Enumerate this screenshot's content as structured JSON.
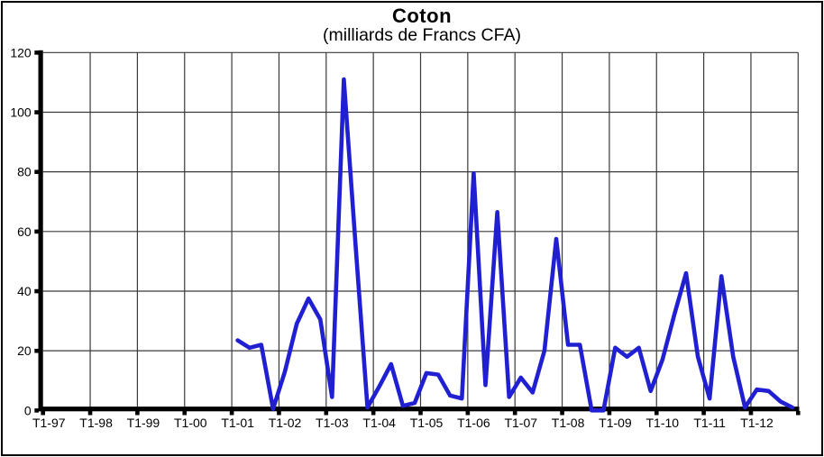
{
  "title": "Coton",
  "subtitle": "(milliards de Francs CFA)",
  "colors": {
    "line": "#2020d2",
    "grid": "#3a3a3a",
    "axis": "#000000",
    "background": "#ffffff",
    "frame": "#000000"
  },
  "chart_data": {
    "type": "line",
    "title": "Coton",
    "subtitle": "(milliards de Francs CFA)",
    "frequency": "quarterly",
    "x_start": "1997-T1",
    "x_end": "2012-T4",
    "x_tick_labels": [
      "T1-97",
      "T1-98",
      "T1-99",
      "T1-00",
      "T1-01",
      "T1-02",
      "T1-03",
      "T1-04",
      "T1-05",
      "T1-06",
      "T1-07",
      "T1-08",
      "T1-09",
      "T1-10",
      "T1-11",
      "T1-12"
    ],
    "ytick_labels": [
      "0",
      "20",
      "40",
      "60",
      "80",
      "100",
      "120"
    ],
    "ylim": [
      0,
      120
    ],
    "ytick_step": 20,
    "grid": true,
    "legend": "none",
    "series": [
      {
        "name": "Coton",
        "color": "#2020d2",
        "values": [
          null,
          null,
          null,
          null,
          null,
          null,
          null,
          null,
          null,
          null,
          null,
          null,
          null,
          null,
          null,
          null,
          23.5,
          21,
          22,
          0.5,
          13,
          29,
          37.5,
          30.5,
          4.5,
          111,
          55,
          1,
          8,
          15.5,
          1.5,
          2.5,
          12.5,
          12,
          5,
          4,
          79.5,
          8.5,
          66.5,
          4.5,
          11,
          6,
          20,
          57.5,
          22,
          22,
          0,
          0,
          21,
          18,
          21,
          6.5,
          17,
          32,
          46,
          18,
          4,
          45,
          18,
          1,
          7,
          6.5,
          3,
          1
        ]
      }
    ]
  }
}
